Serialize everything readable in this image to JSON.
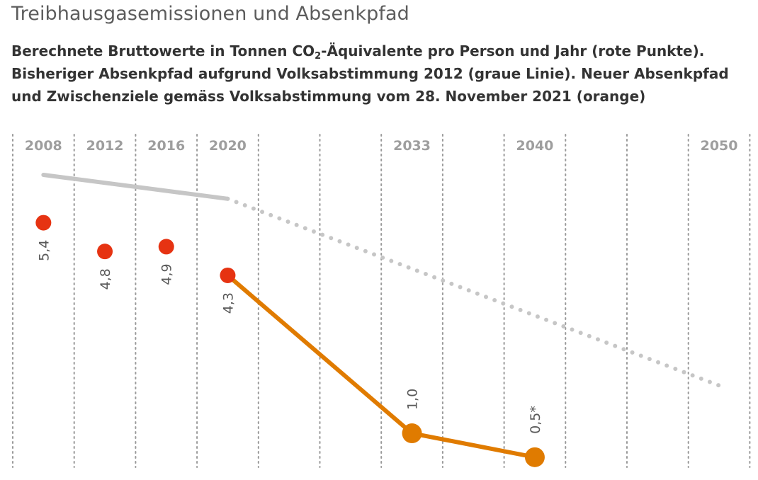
{
  "header": {
    "title": "Treibhausgasemissionen und Absenkpfad",
    "subtitle_part1": "Berechnete Bruttowerte in Tonnen CO",
    "subtitle_sub": "2",
    "subtitle_part2": "-Äquivalente pro Person und Jahr (rote Punkte).",
    "subtitle_line2": "Bisheriger Absenkpfad aufgrund Volksabstimmung 2012 (graue Linie). Neuer Absenkpfad",
    "subtitle_line3": "und Zwischenziele gemäss Volksabstimmung vom 28. November 2021 (orange)"
  },
  "chart_data": {
    "type": "scatter",
    "x_axis": {
      "tick_labels": [
        "2008",
        "2012",
        "2016",
        "2020",
        "2033",
        "2040",
        "2050"
      ],
      "column_slots": 12,
      "label_slots": [
        0,
        1,
        2,
        3,
        6,
        8,
        11
      ]
    },
    "grid": "vertical-dotted",
    "series": [
      {
        "kind": "points",
        "color": "#e63312",
        "points": [
          {
            "x": "2008",
            "y": 5.4,
            "label": "5,4"
          },
          {
            "x": "2012",
            "y": 4.8,
            "label": "4,8"
          },
          {
            "x": "2016",
            "y": 4.9,
            "label": "4,9"
          },
          {
            "x": "2020",
            "y": 4.3,
            "label": "4,3"
          }
        ]
      },
      {
        "kind": "line",
        "color": "#c6c6c6",
        "points": [
          {
            "x": "2008",
            "y": 6.4
          },
          {
            "x": "2020",
            "y": 5.9
          }
        ]
      },
      {
        "kind": "dotted-line",
        "color": "#c6c6c6",
        "points": [
          {
            "x": "2020",
            "y": 5.9
          },
          {
            "x": "2050",
            "y": 2.0
          }
        ]
      },
      {
        "kind": "line-points",
        "color": "#e07b00",
        "points": [
          {
            "x": "2020",
            "y": 4.3,
            "label": ""
          },
          {
            "x": "2033",
            "y": 1.0,
            "label": "1,0"
          },
          {
            "x": "2040",
            "y": 0.5,
            "label": "0,5*"
          }
        ]
      }
    ]
  }
}
